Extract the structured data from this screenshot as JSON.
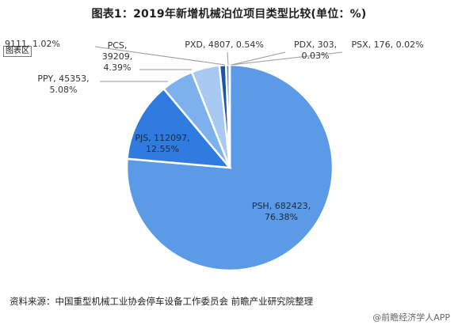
{
  "title": "图表1：2019年新增机械泊位项目类型比较(单位：%)",
  "tag": "图表区",
  "footer": {
    "source": "资料来源：中国重型机械工业协会停车设备工作委员会 前瞻产业研究院整理",
    "brand": "@前瞻经济学人APP"
  },
  "chart_data": {
    "type": "pie",
    "title": "图表1：2019年新增机械泊位项目类型比较(单位：%)",
    "slices": [
      {
        "name": "PSH",
        "count": "682423",
        "percent": 76.38,
        "percent_label": "76.38%",
        "color": "#5a9ae6"
      },
      {
        "name": "PJS",
        "count": "112097",
        "percent": 12.55,
        "percent_label": "12.55%",
        "color": "#2f7be0"
      },
      {
        "name": "PPY",
        "count": "45353",
        "percent": 5.08,
        "percent_label": "5.08%",
        "color": "#7cb1ee"
      },
      {
        "name": "PCS",
        "count": "39209",
        "percent": 4.39,
        "percent_label": "4.39%",
        "color": "#a8c9f2"
      },
      {
        "name": "",
        "count": "9111",
        "percent": 1.02,
        "percent_label": "1.02%",
        "color": "#1d55a6"
      },
      {
        "name": "PXD",
        "count": "4807",
        "percent": 0.54,
        "percent_label": "0.54%",
        "color": "#3e8ad4"
      },
      {
        "name": "PDX",
        "count": "303",
        "percent": 0.03,
        "percent_label": "0.03%",
        "color": "#9ec3f0"
      },
      {
        "name": "PSX",
        "count": "176",
        "percent": 0.02,
        "percent_label": "0.02%",
        "color": "#c6dcf6"
      }
    ]
  }
}
